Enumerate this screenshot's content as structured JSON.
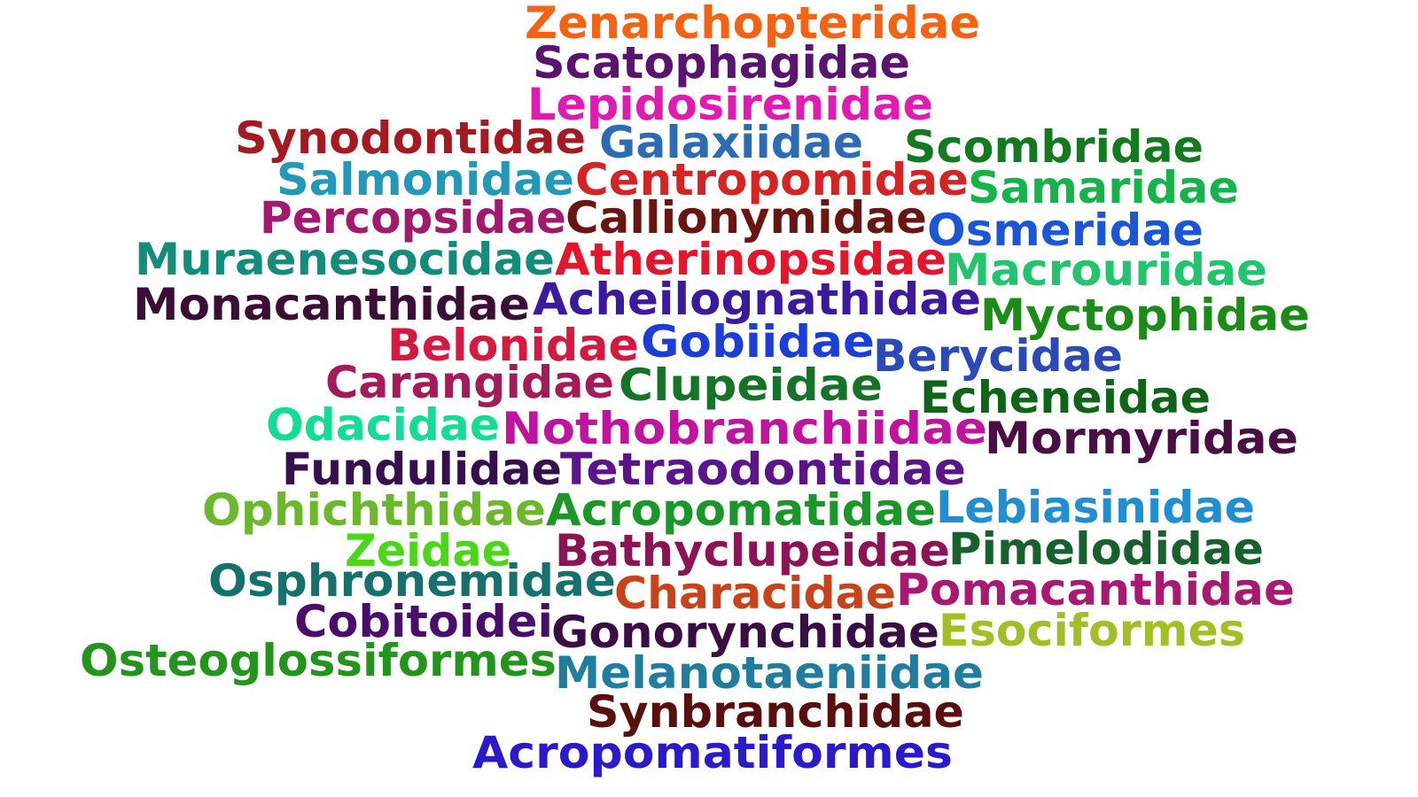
{
  "words": [
    {
      "text": "Zenarchopteridae",
      "color": "#f26413"
    },
    {
      "text": "Scatophagidae",
      "color": "#5a136f"
    },
    {
      "text": "Lepidosirenidae",
      "color": "#e01bb1"
    },
    {
      "text": "Synodontidae",
      "color": "#a41a20"
    },
    {
      "text": "Galaxiidae",
      "color": "#2c6cb2"
    },
    {
      "text": "Scombridae",
      "color": "#137a1f"
    },
    {
      "text": "Salmonidae",
      "color": "#2299b8"
    },
    {
      "text": "Centropomidae",
      "color": "#d42424"
    },
    {
      "text": "Samaridae",
      "color": "#16b34a"
    },
    {
      "text": "Percopsidae",
      "color": "#a11a6e"
    },
    {
      "text": "Callionymidae",
      "color": "#6a1512"
    },
    {
      "text": "Osmeridae",
      "color": "#1b56d6"
    },
    {
      "text": "Muraenesocidae",
      "color": "#138c7c"
    },
    {
      "text": "Atherinopsidae",
      "color": "#e3162e"
    },
    {
      "text": "Macrouridae",
      "color": "#22c56e"
    },
    {
      "text": "Monacanthidae",
      "color": "#3b0e38"
    },
    {
      "text": "Acheilognathidae",
      "color": "#3c1aa0"
    },
    {
      "text": "Myctophidae",
      "color": "#1b8c18"
    },
    {
      "text": "Belonidae",
      "color": "#d41a40"
    },
    {
      "text": "Gobiidae",
      "color": "#1b3ed8"
    },
    {
      "text": "Berycidae",
      "color": "#2b4ab8"
    },
    {
      "text": "Carangidae",
      "color": "#a51a58"
    },
    {
      "text": "Clupeidae",
      "color": "#167428"
    },
    {
      "text": "Echeneidae",
      "color": "#0f6418"
    },
    {
      "text": "Odacidae",
      "color": "#12dc95"
    },
    {
      "text": "Nothobranchiidae",
      "color": "#c014a0"
    },
    {
      "text": "Mormyridae",
      "color": "#4a0d44"
    },
    {
      "text": "Fundulidae",
      "color": "#380f4e"
    },
    {
      "text": "Tetraodontidae",
      "color": "#5c148a"
    },
    {
      "text": "Ophichthidae",
      "color": "#6bb82c"
    },
    {
      "text": "Acropomatidae",
      "color": "#1b9628"
    },
    {
      "text": "Lebiasinidae",
      "color": "#1f8fd0"
    },
    {
      "text": "Zeidae",
      "color": "#4bd61a"
    },
    {
      "text": "Bathyclupeidae",
      "color": "#8c1456"
    },
    {
      "text": "Pimelodidae",
      "color": "#17612c"
    },
    {
      "text": "Osphronemidae",
      "color": "#16706e"
    },
    {
      "text": "Characidae",
      "color": "#c9431a"
    },
    {
      "text": "Pomacanthidae",
      "color": "#a81a72"
    },
    {
      "text": "Cobitoidei",
      "color": "#4a0d6c"
    },
    {
      "text": "Gonorynchidae",
      "color": "#3a0e44"
    },
    {
      "text": "Esociformes",
      "color": "#a2bf25"
    },
    {
      "text": "Osteoglossiformes",
      "color": "#23941c"
    },
    {
      "text": "Melanotaeniidae",
      "color": "#1f7e9e"
    },
    {
      "text": "Synbranchidae",
      "color": "#5a0f0f"
    },
    {
      "text": "Acropomatiformes",
      "color": "#2a1acb"
    }
  ]
}
